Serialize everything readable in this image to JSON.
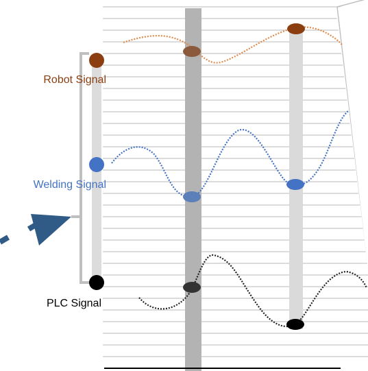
{
  "signals": [
    {
      "key": "robot",
      "label": "Robot Signal",
      "color": "#8B3E10",
      "line_color": "#E08A4A"
    },
    {
      "key": "welding",
      "label": "Welding Signal",
      "color": "#4472C4",
      "line_color": "#4472C4"
    },
    {
      "key": "plc",
      "label": "PLC Signal",
      "color": "#000000",
      "line_color": "#222222"
    }
  ],
  "colors": {
    "grid": "#c8c8c8",
    "bracket": "#bfbfbf",
    "band_dark": "#b3b3b3",
    "band_light": "#dadada",
    "arrow": "#2F5B86",
    "panel_border": "#bfbfbf"
  }
}
